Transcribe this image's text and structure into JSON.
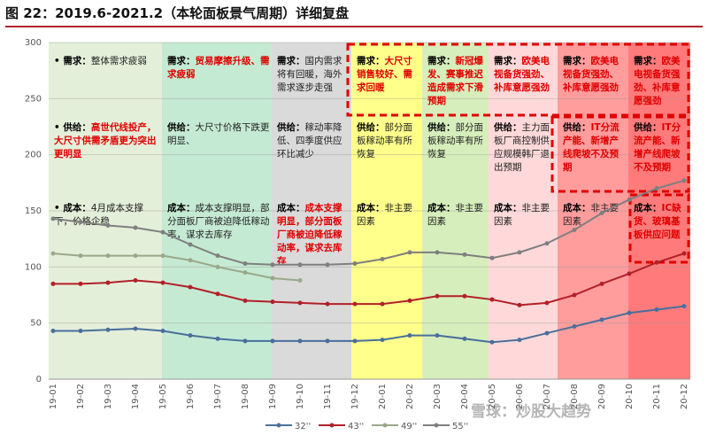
{
  "chart_data": {
    "type": "line",
    "title": "图 22：2019.6-2021.2（本轮面板景气周期）详细复盘",
    "categories": [
      "19-01",
      "19-02",
      "19-03",
      "19-04",
      "19-05",
      "19-06",
      "19-07",
      "19-08",
      "19-09",
      "19-10",
      "19-11",
      "19-12",
      "20-01",
      "20-02",
      "20-03",
      "20-04",
      "20-05",
      "20-06",
      "20-07",
      "20-08",
      "20-09",
      "20-10",
      "20-11",
      "20-12"
    ],
    "series": [
      {
        "name": "32''",
        "color": "#4a6f9c",
        "values": [
          43,
          43,
          44,
          45,
          43,
          39,
          36,
          34,
          34,
          34,
          34,
          34,
          35,
          39,
          39,
          36,
          33,
          35,
          41,
          47,
          53,
          59,
          62,
          65
        ]
      },
      {
        "name": "43''",
        "color": "#b22028",
        "values": [
          85,
          85,
          86,
          88,
          86,
          82,
          76,
          70,
          69,
          68,
          67,
          67,
          67,
          70,
          74,
          74,
          71,
          66,
          68,
          75,
          85,
          94,
          104,
          112
        ]
      },
      {
        "name": "49''",
        "color": "#9aa88a",
        "values": [
          112,
          110,
          110,
          110,
          110,
          106,
          100,
          95,
          90,
          88,
          null,
          null,
          null,
          null,
          null,
          null,
          null,
          null,
          null,
          null,
          null,
          null,
          null,
          null
        ]
      },
      {
        "name": "55''",
        "color": "#7f7f7f",
        "values": [
          143,
          140,
          137,
          135,
          131,
          120,
          110,
          103,
          102,
          102,
          102,
          103,
          107,
          113,
          113,
          111,
          108,
          113,
          121,
          133,
          148,
          160,
          170,
          177
        ]
      }
    ],
    "ylim": [
      0,
      300
    ],
    "yticks": [
      0,
      50,
      100,
      150,
      200,
      250,
      300
    ],
    "grid": true,
    "phases": [
      {
        "color": "#e4efda",
        "items": [
          {
            "label": "需求：",
            "text": "整体需求疲弱",
            "emphasis": false
          },
          {
            "label": "供给：",
            "text": "高世代线投产，大尺寸供需矛盾更为突出更明显",
            "emphasis": true
          },
          {
            "label": "成本：",
            "text": "4月成本支撑下，价格企稳",
            "emphasis": false
          }
        ]
      },
      {
        "color": "#c5ead3",
        "items": [
          {
            "label": "需求：",
            "text": "贸易摩擦升级、需求疲弱",
            "emphasis": true
          },
          {
            "label": "供给：",
            "text": "大尺寸价格下跌更明显、",
            "emphasis": false
          },
          {
            "label": "成本：",
            "text": "成本支撑明显，部分面板厂商被迫降低稼动率，谋求去库存",
            "emphasis": false
          }
        ]
      },
      {
        "color": "#dadada",
        "items": [
          {
            "label": "需求：",
            "text": "国内需求将有回暖，海外需求逐步走强",
            "emphasis": false
          },
          {
            "label": "供给：",
            "text": "稼动率降低、四季度供应环比减少",
            "emphasis": false
          },
          {
            "label": "成本：",
            "text": "成本支撑明显，部分面板厂商被迫降低稼动率，谋求去库存",
            "emphasis": true
          }
        ]
      },
      {
        "color": "#ffff8c",
        "items": [
          {
            "label": "需求：",
            "text": "大尺寸销售较好、需求回暖",
            "emphasis": true
          },
          {
            "label": "供给：",
            "text": "部分面板稼动率有所恢复",
            "emphasis": false
          },
          {
            "label": "成本：",
            "text": "非主要因素",
            "emphasis": false
          }
        ]
      },
      {
        "color": "#d6eebb",
        "items": [
          {
            "label": "需求：",
            "text": "新冠爆发、赛事推迟造成需求下滑预期",
            "emphasis": true
          },
          {
            "label": "供给：",
            "text": "部分面板稼动率有所恢复",
            "emphasis": false
          },
          {
            "label": "成本：",
            "text": "非主要因素",
            "emphasis": false
          }
        ]
      },
      {
        "color": "#ffd9d9",
        "items": [
          {
            "label": "需求：",
            "text": "欧美电视备货强劲、补库意愿强劲",
            "emphasis": true
          },
          {
            "label": "供给：",
            "text": "主力面板厂商控制供应规模韩厂退出预期",
            "emphasis": false
          },
          {
            "label": "成本：",
            "text": "非主要因素",
            "emphasis": false
          }
        ]
      },
      {
        "color": "#ff9d9d",
        "items": [
          {
            "label": "需求：",
            "text": "欧美电视备货强劲、补库意愿强劲",
            "emphasis": true
          },
          {
            "label": "供给：",
            "text": "IT分流产能、新增产线爬坡不及预期",
            "emphasis": true
          },
          {
            "label": "成本：",
            "text": "非主要因素",
            "emphasis": false
          }
        ]
      },
      {
        "color": "#ff7b7b",
        "items": [
          {
            "label": "需求：",
            "text": "欧美电视备货强劲、补库意愿强劲",
            "emphasis": true
          },
          {
            "label": "供给：",
            "text": "IT分流产能、新增产线爬坡不及预期",
            "emphasis": true
          },
          {
            "label": "成本：",
            "text": "IC缺货、玻璃基板供应问题",
            "emphasis": true
          }
        ]
      }
    ],
    "watermark": "雪球：炒股大趋势"
  }
}
